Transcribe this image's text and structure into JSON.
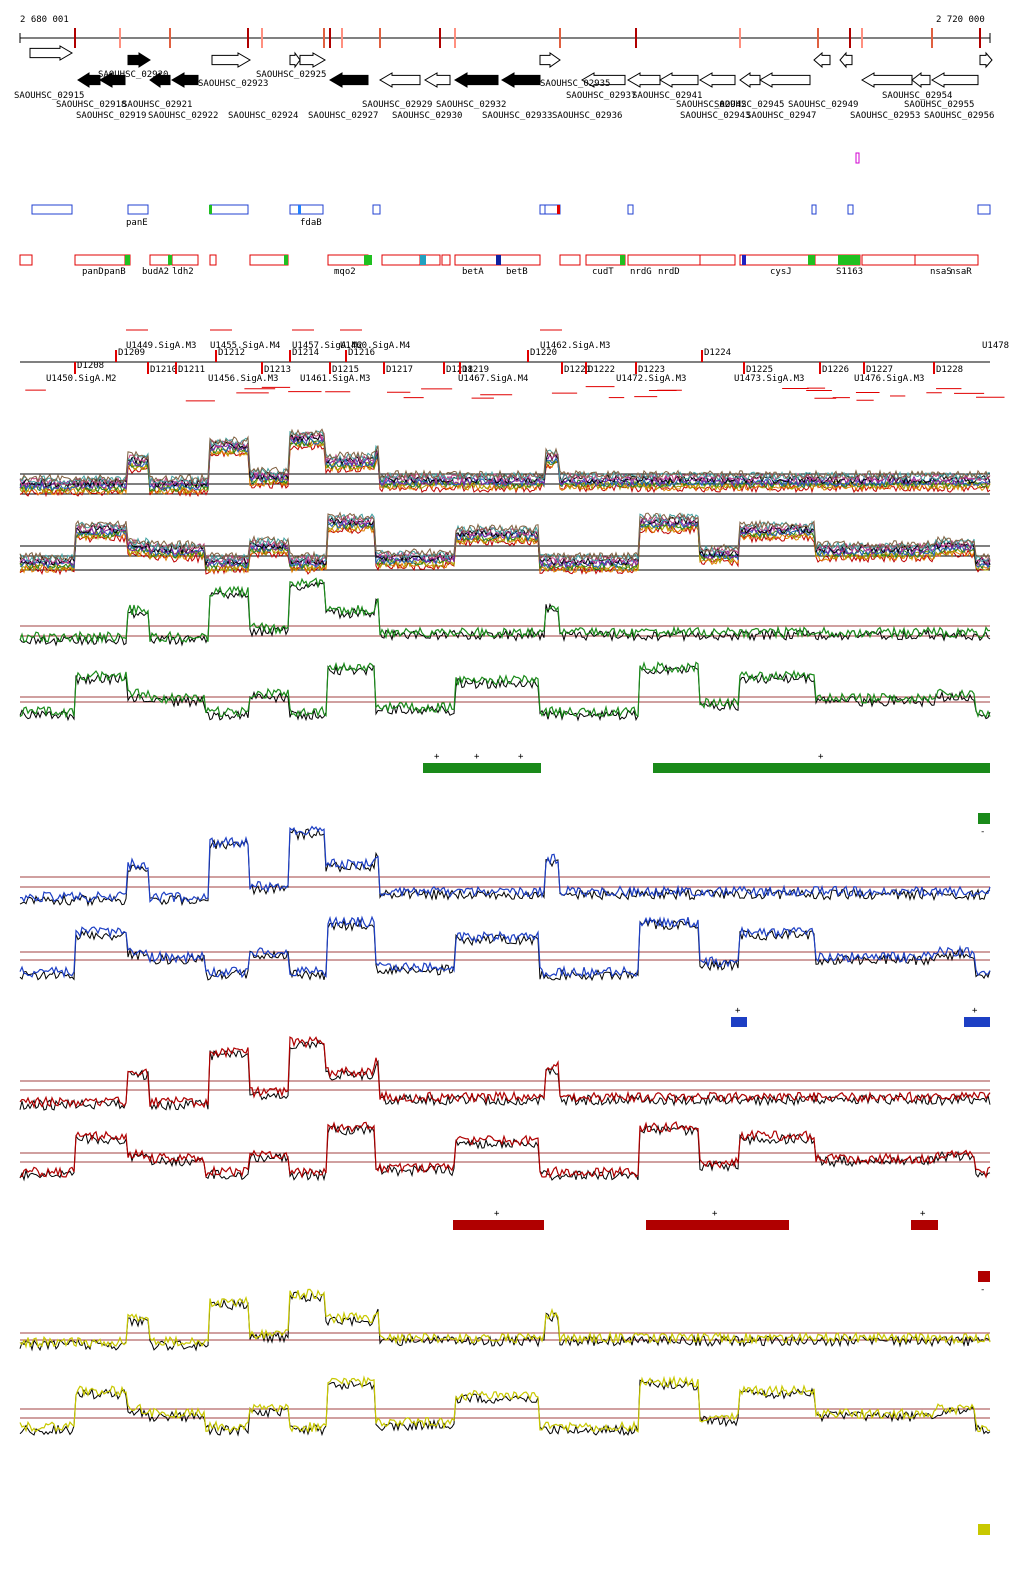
{
  "ruler": {
    "start": "2 680 001",
    "end": "2 720 000"
  },
  "genes_upper": [
    {
      "label": "SAOUHSC_02915",
      "dir": "+",
      "filled": false
    },
    {
      "label": "SAOUHSC_02918",
      "dir": "-",
      "filled": true
    },
    {
      "label": "SAOUHSC_02919",
      "dir": "-",
      "filled": true
    },
    {
      "label": "SAOUHSC_02920",
      "dir": "+",
      "filled": true
    },
    {
      "label": "SAOUHSC_02921",
      "dir": "-",
      "filled": true
    },
    {
      "label": "SAOUHSC_02922",
      "dir": "-",
      "filled": true
    },
    {
      "label": "SAOUHSC_02923",
      "dir": "+",
      "filled": false
    },
    {
      "label": "SAOUHSC_02924",
      "dir": "+",
      "filled": false
    },
    {
      "label": "SAOUHSC_02925",
      "dir": "+",
      "filled": false
    },
    {
      "label": "SAOUHSC_02927",
      "dir": "-",
      "filled": true
    },
    {
      "label": "SAOUHSC_02929",
      "dir": "-",
      "filled": false
    },
    {
      "label": "SAOUHSC_02930",
      "dir": "-",
      "filled": false
    },
    {
      "label": "SAOUHSC_02932",
      "dir": "-",
      "filled": true
    },
    {
      "label": "SAOUHSC_02933",
      "dir": "-",
      "filled": true
    },
    {
      "label": "SAOUHSC_02935",
      "dir": "+",
      "filled": false
    },
    {
      "label": "SAOUHSC_02936",
      "dir": "-",
      "filled": false
    },
    {
      "label": "SAOUHSC_02937",
      "dir": "-",
      "filled": false
    },
    {
      "label": "SAOUHSC_02941",
      "dir": "-",
      "filled": false
    },
    {
      "label": "SAOUHSC_02942",
      "dir": "-",
      "filled": false
    },
    {
      "label": "SAOUHSC_02943",
      "dir": "-",
      "filled": false
    },
    {
      "label": "SAOUHSC_02945",
      "dir": "-",
      "filled": false
    },
    {
      "label": "SAOUHSC_02947",
      "dir": "-",
      "filled": false
    },
    {
      "label": "SAOUHSC_02949",
      "dir": "-",
      "filled": false
    },
    {
      "label": "SAOUHSC_02953",
      "dir": "-",
      "filled": false
    },
    {
      "label": "SAOUHSC_02954",
      "dir": "-",
      "filled": false
    },
    {
      "label": "SAOUHSC_02955",
      "dir": "-",
      "filled": false
    },
    {
      "label": "SAOUHSC_02956",
      "dir": "+",
      "filled": false
    }
  ],
  "genes_names": [
    "panE",
    "fdaB",
    "panD",
    "panB",
    "budA2",
    "ldh2",
    "mqo2",
    "betA",
    "betB",
    "cudT",
    "nrdG",
    "nrdD",
    "cysJ",
    "S1163",
    "nsaS",
    "nsaR"
  ],
  "segments": [
    "D1208",
    "D1209",
    "D1210",
    "D1211",
    "D1212",
    "D1213",
    "D1214",
    "D1215",
    "D1216",
    "D1217",
    "D1218",
    "D1219",
    "D1220",
    "D1221",
    "D1222",
    "D1223",
    "D1224",
    "D1225",
    "D1226",
    "D1227",
    "D1228"
  ],
  "promoters_top": [
    "U1449.SigA.M3",
    "U1455.SigA.M4",
    "U1457.SigA.M2",
    "U1460.SigA.M4",
    "U1462.SigA.M3"
  ],
  "promoters_bottom": [
    "U1450.SigA.M2",
    "U1456.SigA.M3",
    "U1461.SigA.M3",
    "U1467.SigA.M4",
    "U1472.SigA.M3",
    "U1473.SigA.M3",
    "U1476.SigA.M3",
    "U1478"
  ],
  "condition_markers": [
    "+",
    "-"
  ],
  "colors": {
    "green": "#1a8a1a",
    "blue": "#1d3fc4",
    "red": "#b00000",
    "yellow": "#c8c800",
    "gene_box": "#e00000",
    "blue_box": "#2040d0"
  }
}
